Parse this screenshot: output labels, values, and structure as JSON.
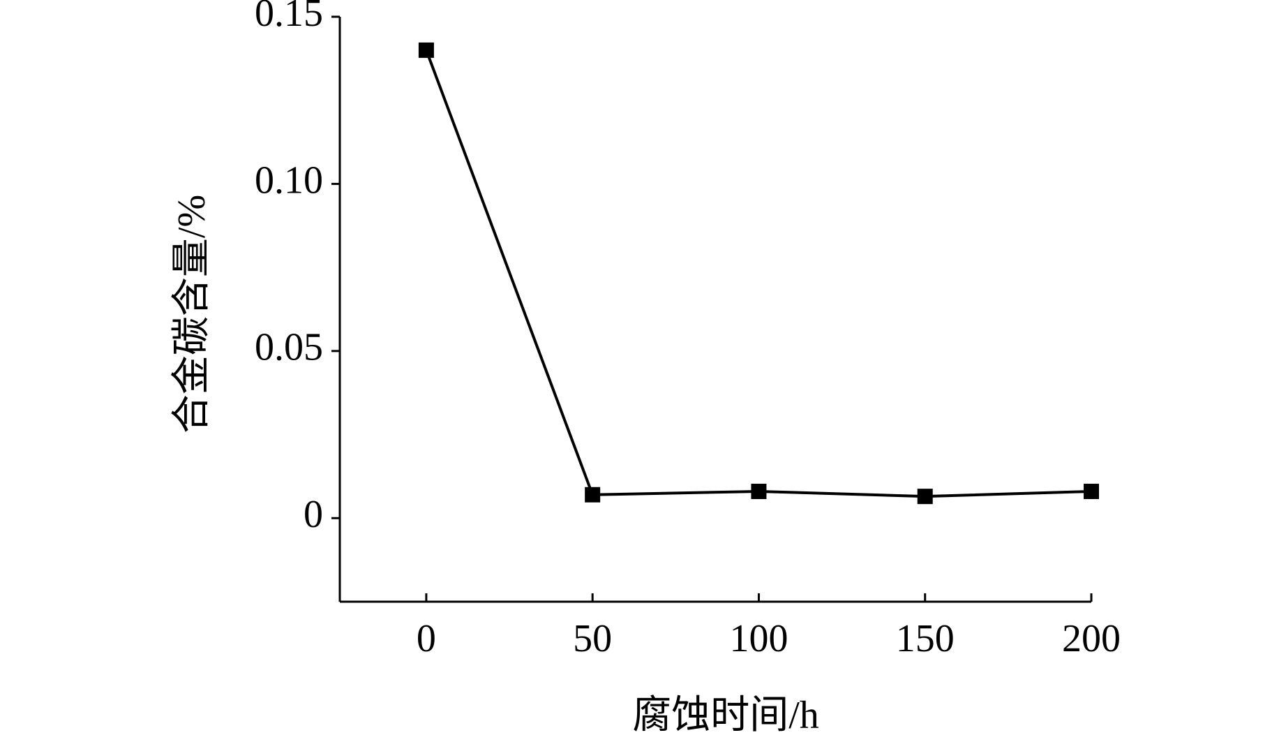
{
  "chart_data": {
    "type": "line",
    "x_label": "腐蚀时间/h",
    "y_label": "合金碳含量/%",
    "x": [
      0,
      50,
      100,
      150,
      200
    ],
    "series": [
      {
        "color": "#000000",
        "values": [
          0.14,
          0.007,
          0.008,
          0.0065,
          0.008
        ]
      }
    ],
    "xlim": [
      -26,
      200
    ],
    "ylim": [
      -0.025,
      0.15
    ],
    "xticks": [
      0,
      50,
      100,
      150,
      200
    ],
    "yticks": [
      0,
      0.05,
      {
        "value": 0.1,
        "label": "0.10"
      },
      0.15
    ],
    "grid": false
  }
}
